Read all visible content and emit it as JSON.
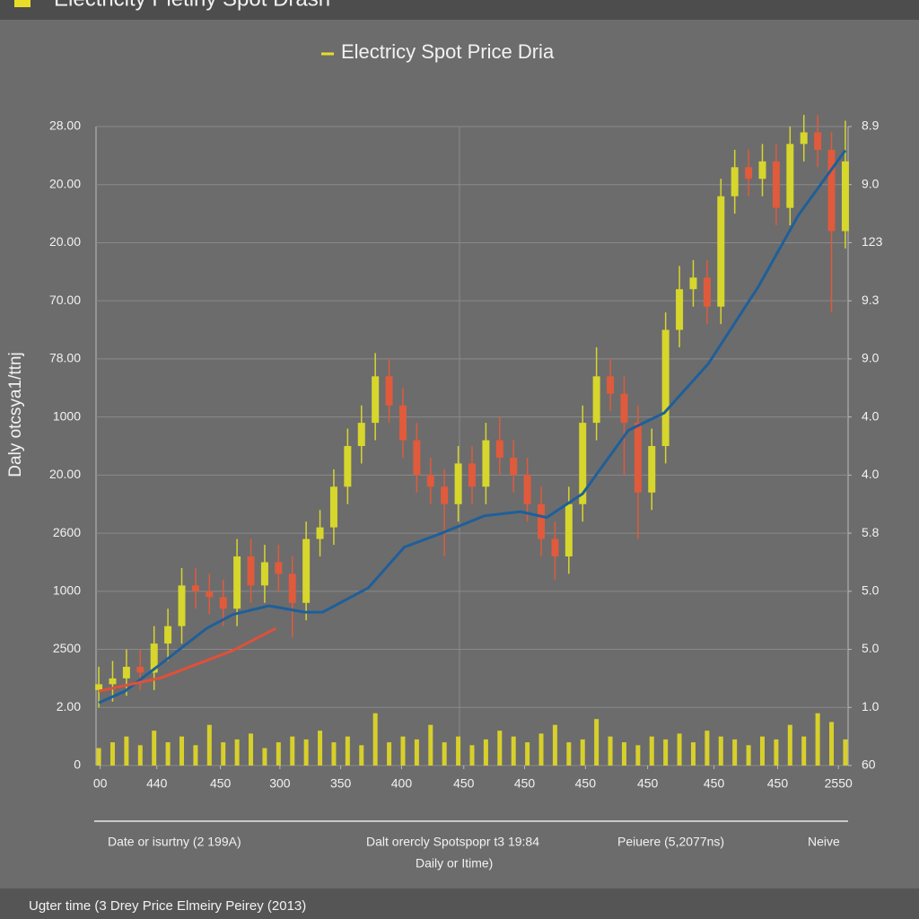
{
  "top_bar": {
    "title": "Electricity Pletiny Spot Drash"
  },
  "chart_data": {
    "type": "candlestick",
    "title": "Electricy Spot Price Dria",
    "y_label": "Daly otcsya1/ttnj",
    "open": [
      1.3,
      1.4,
      1.5,
      1.7,
      1.6,
      2.1,
      2.4,
      3.1,
      3.0,
      2.9,
      2.7,
      3.6,
      3.1,
      3.5,
      3.3,
      2.8,
      3.9,
      4.1,
      4.8,
      5.5,
      5.9,
      6.7,
      6.2,
      5.6,
      5.0,
      4.8,
      4.5,
      5.2,
      4.8,
      5.6,
      5.3,
      5.0,
      4.5,
      3.9,
      3.6,
      4.5,
      5.9,
      6.7,
      6.4,
      5.9,
      4.7,
      5.5,
      7.5,
      8.2,
      8.4,
      7.9,
      9.8,
      10.3,
      10.1,
      10.4,
      9.6,
      10.7,
      10.9,
      10.6,
      9.2
    ],
    "high": [
      1.7,
      1.8,
      2.0,
      2.0,
      2.4,
      2.7,
      3.4,
      3.4,
      3.3,
      3.2,
      3.9,
      3.9,
      3.8,
      3.8,
      3.6,
      4.2,
      4.4,
      5.1,
      5.8,
      6.2,
      7.1,
      7.0,
      6.5,
      5.9,
      5.3,
      5.1,
      5.5,
      5.5,
      5.9,
      6.0,
      5.6,
      5.3,
      4.8,
      4.2,
      4.8,
      6.2,
      7.2,
      7.0,
      6.7,
      6.2,
      5.8,
      7.8,
      8.6,
      8.7,
      8.7,
      10.1,
      10.6,
      10.6,
      10.7,
      10.7,
      11.0,
      11.2,
      11.2,
      10.9,
      11.1
    ],
    "low": [
      1.0,
      1.1,
      1.2,
      1.3,
      1.3,
      1.8,
      2.1,
      2.7,
      2.6,
      2.4,
      2.4,
      2.8,
      2.8,
      3.0,
      2.2,
      2.5,
      3.6,
      3.8,
      4.5,
      5.2,
      5.6,
      5.9,
      5.3,
      4.7,
      4.5,
      3.6,
      4.2,
      4.5,
      4.5,
      5.0,
      4.7,
      4.2,
      3.6,
      3.2,
      3.3,
      4.2,
      5.6,
      6.1,
      5.0,
      3.9,
      4.4,
      5.2,
      7.2,
      7.9,
      7.6,
      7.6,
      9.5,
      9.8,
      9.8,
      9.3,
      9.3,
      10.4,
      10.3,
      7.8,
      8.9
    ],
    "close": [
      1.4,
      1.5,
      1.7,
      1.6,
      2.1,
      2.4,
      3.1,
      3.0,
      2.9,
      2.7,
      3.6,
      3.1,
      3.5,
      3.3,
      2.8,
      3.9,
      4.1,
      4.8,
      5.5,
      5.9,
      6.7,
      6.2,
      5.6,
      5.0,
      4.8,
      4.5,
      5.2,
      4.8,
      5.6,
      5.3,
      5.0,
      4.5,
      3.9,
      3.6,
      4.5,
      5.9,
      6.7,
      6.4,
      5.9,
      4.7,
      5.5,
      7.5,
      8.2,
      8.4,
      7.9,
      9.8,
      10.3,
      10.1,
      10.4,
      9.6,
      10.7,
      10.9,
      10.6,
      9.2,
      10.4
    ],
    "up_color": "#d6d62c",
    "down_color": "#e05a3c",
    "volume": [
      0.3,
      0.4,
      0.5,
      0.35,
      0.6,
      0.4,
      0.5,
      0.35,
      0.7,
      0.4,
      0.45,
      0.55,
      0.3,
      0.4,
      0.5,
      0.45,
      0.6,
      0.4,
      0.5,
      0.35,
      0.9,
      0.4,
      0.5,
      0.45,
      0.7,
      0.4,
      0.5,
      0.35,
      0.45,
      0.6,
      0.5,
      0.4,
      0.55,
      0.7,
      0.4,
      0.45,
      0.8,
      0.5,
      0.4,
      0.35,
      0.5,
      0.45,
      0.55,
      0.4,
      0.6,
      0.5,
      0.45,
      0.35,
      0.5,
      0.45,
      0.7,
      0.5,
      0.9,
      0.75,
      0.45
    ],
    "volume_color": "#d8d02a",
    "lines": [
      {
        "color": "#1f5f9a",
        "x": [
          0,
          1.9,
          4.5,
          7.8,
          9.7,
          12.3,
          14.9,
          16.2,
          19.5,
          22.1,
          24.7,
          27.9,
          30.5,
          32.4,
          35.0,
          38.3,
          40.9,
          44.1,
          47.7,
          50.6,
          54.0
        ],
        "values": [
          1.08,
          1.28,
          1.75,
          2.36,
          2.6,
          2.75,
          2.64,
          2.64,
          3.06,
          3.76,
          3.99,
          4.3,
          4.37,
          4.27,
          4.68,
          5.77,
          6.07,
          6.92,
          8.24,
          9.47,
          10.59
        ]
      },
      {
        "color": "#e0503a",
        "x": [
          0,
          4.5,
          9.7,
          12.8
        ],
        "values": [
          1.28,
          1.51,
          1.98,
          2.36
        ]
      }
    ],
    "xlim": [
      -0.2,
      54.2
    ],
    "xticks": [
      {
        "value": 0.1,
        "label": "00"
      },
      {
        "value": 4.2,
        "label": "440"
      },
      {
        "value": 8.8,
        "label": "450"
      },
      {
        "value": 13.1,
        "label": "300"
      },
      {
        "value": 17.5,
        "label": "350"
      },
      {
        "value": 21.9,
        "label": "400"
      },
      {
        "value": 26.4,
        "label": "450"
      },
      {
        "value": 30.8,
        "label": "450"
      },
      {
        "value": 35.2,
        "label": "450"
      },
      {
        "value": 39.7,
        "label": "450"
      },
      {
        "value": 44.5,
        "label": "450"
      },
      {
        "value": 49.1,
        "label": "450"
      },
      {
        "value": 53.5,
        "label": "2550"
      }
    ],
    "ylim": [
      0,
      11
    ],
    "yticks": [
      {
        "value": 11,
        "label": "28.00"
      },
      {
        "value": 10,
        "label": "20.00"
      },
      {
        "value": 9,
        "label": "20.00"
      },
      {
        "value": 8,
        "label": "70.00"
      },
      {
        "value": 7,
        "label": "78.00"
      },
      {
        "value": 6,
        "label": "1000"
      },
      {
        "value": 5,
        "label": "20.00"
      },
      {
        "value": 4,
        "label": "2600"
      },
      {
        "value": 3,
        "label": "1000"
      },
      {
        "value": 2,
        "label": "2500"
      },
      {
        "value": 1,
        "label": "2.00"
      },
      0
    ],
    "y2lim": [
      0,
      11
    ],
    "y2ticks": [
      {
        "value": 11,
        "label": "8.9"
      },
      {
        "value": 10,
        "label": "9.0"
      },
      {
        "value": 9,
        "label": "123"
      },
      {
        "value": 8,
        "label": "9.3"
      },
      {
        "value": 7,
        "label": "9.0"
      },
      {
        "value": 6,
        "label": "4.0"
      },
      {
        "value": 5,
        "label": "4.0"
      },
      {
        "value": 4,
        "label": "5.8"
      },
      {
        "value": 3,
        "label": "5.0"
      },
      {
        "value": 2,
        "label": "5.0"
      },
      {
        "value": 1,
        "label": "1.0"
      },
      {
        "value": 0,
        "label": "60"
      }
    ],
    "grid": true
  },
  "footer_labels": [
    "Date or isurtny (2 199A)",
    "Dalt orercly Spotspopr t3 19:84",
    "Peiuere (5,2077ns)",
    "Neive"
  ],
  "footer_sub": "Daily or Itime)",
  "bottom_bar": {
    "text": "Ugter time (3 Drey Price Elmeiry Peirey (2013)"
  }
}
